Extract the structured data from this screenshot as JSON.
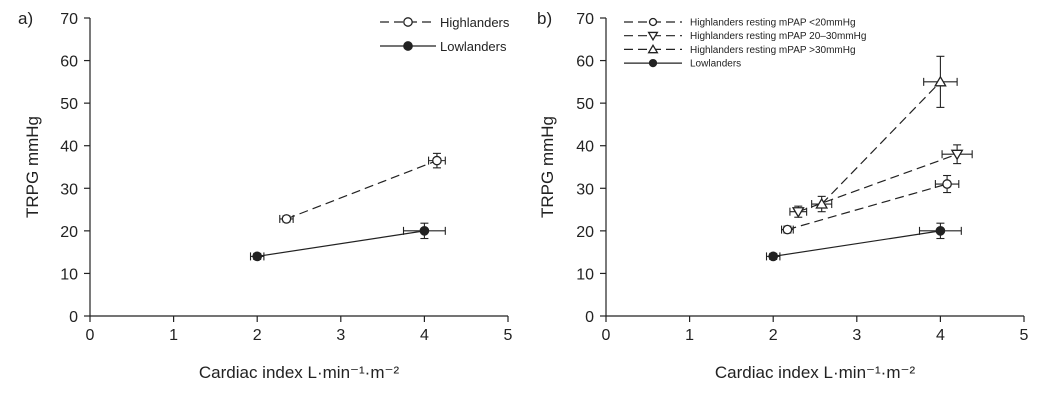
{
  "chart_data": [
    {
      "type": "line",
      "panel_label": "a)",
      "xlabel": "Cardiac index L·min⁻¹·m⁻²",
      "ylabel": "TRPG mmHg",
      "xlim": [
        0,
        5
      ],
      "ylim": [
        0,
        70
      ],
      "xticks": [
        "0",
        "1",
        "2",
        "3",
        "4",
        "5"
      ],
      "yticks": [
        "0",
        "10",
        "20",
        "30",
        "40",
        "50",
        "60",
        "70"
      ],
      "grid": false,
      "legend_position": "top-right",
      "series": [
        {
          "name": "Highlanders",
          "marker": "circle-open",
          "line": "dashed",
          "points": [
            {
              "x": 2.35,
              "y": 22.8,
              "xerr": 0.08,
              "yerr": 0.7
            },
            {
              "x": 4.15,
              "y": 36.5,
              "xerr": 0.1,
              "yerr": 1.7
            }
          ]
        },
        {
          "name": "Lowlanders",
          "marker": "circle-filled",
          "line": "solid",
          "points": [
            {
              "x": 2.0,
              "y": 14.0,
              "xerr": 0.08,
              "yerr": 0.7
            },
            {
              "x": 4.0,
              "y": 20.0,
              "xerr": 0.25,
              "yerr": 1.8
            }
          ]
        }
      ]
    },
    {
      "type": "line",
      "panel_label": "b)",
      "xlabel": "Cardiac index L·min⁻¹·m⁻²",
      "ylabel": "TRPG mmHg",
      "xlim": [
        0,
        5
      ],
      "ylim": [
        0,
        70
      ],
      "xticks": [
        "0",
        "1",
        "2",
        "3",
        "4",
        "5"
      ],
      "yticks": [
        "0",
        "10",
        "20",
        "30",
        "40",
        "50",
        "60",
        "70"
      ],
      "grid": false,
      "legend_position": "top-left",
      "series": [
        {
          "name": "Highlanders resting mPAP <20mmHg",
          "marker": "circle-open",
          "line": "dashed",
          "points": [
            {
              "x": 2.17,
              "y": 20.3,
              "xerr": 0.07,
              "yerr": 0.8
            },
            {
              "x": 4.08,
              "y": 31.0,
              "xerr": 0.14,
              "yerr": 2.0
            }
          ]
        },
        {
          "name": "Highlanders resting mPAP 20–30mmHg",
          "marker": "triangle-down-open",
          "line": "dashed",
          "points": [
            {
              "x": 2.3,
              "y": 24.5,
              "xerr": 0.1,
              "yerr": 1.3
            },
            {
              "x": 4.2,
              "y": 38.0,
              "xerr": 0.18,
              "yerr": 2.2
            }
          ]
        },
        {
          "name": "Highlanders resting mPAP >30mmHg",
          "marker": "triangle-up-open",
          "line": "dashed",
          "points": [
            {
              "x": 2.58,
              "y": 26.3,
              "xerr": 0.12,
              "yerr": 1.8
            },
            {
              "x": 4.0,
              "y": 55.0,
              "xerr": 0.2,
              "yerr": 6.0
            }
          ]
        },
        {
          "name": "Lowlanders",
          "marker": "circle-filled",
          "line": "solid",
          "points": [
            {
              "x": 2.0,
              "y": 14.0,
              "xerr": 0.08,
              "yerr": 0.7
            },
            {
              "x": 4.0,
              "y": 20.0,
              "xerr": 0.25,
              "yerr": 1.8
            }
          ]
        }
      ]
    }
  ]
}
